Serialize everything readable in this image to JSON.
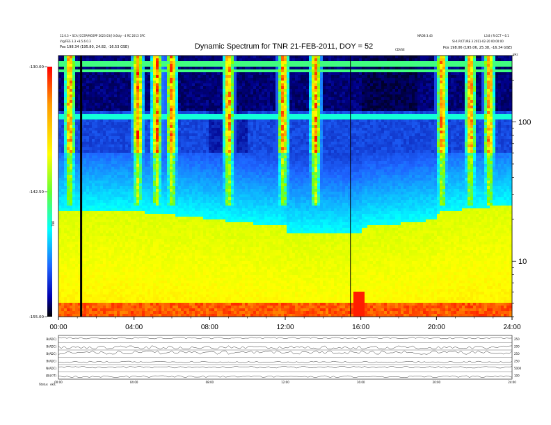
{
  "chart_data": {
    "type": "heatmap",
    "title": "Dynamic Spectrum for TNR 21-FEB-2011, DOY = 52",
    "header": {
      "left_line1": "12.0.3 • SCA [CCSP/MGSPP 2023 03/] 0.6kty - 4 RC 2013 5PC",
      "left_line2": "Vrg/FES 3.3 •8.5.6 0.3",
      "left_line3": "Pos 198.34 (195.80, 24.82, -16.53 GSE)",
      "center_small": "CDVSE",
      "right_line1": "NROB 3.43",
      "right_line2": "L3.8 / R.CCT • 6.1",
      "right_line3": "SI-4.P/CTURE 3 2011-02-20 00:00:00",
      "right_line4": "Pos 198.06 (195.06, 25.38, -16.34 GSE)",
      "right_corner": "kHz"
    },
    "colorbar": {
      "ticks": [
        "-130.00",
        "-142.50",
        "-155.00"
      ],
      "label": "TNR"
    },
    "y_axis": {
      "scale": "log",
      "range_khz": [
        4,
        300
      ],
      "tick_labels": [
        "100",
        "10"
      ],
      "tick_values": [
        100,
        10
      ]
    },
    "x_axis": {
      "range_hours": [
        0,
        24
      ],
      "tick_labels": [
        "00:00",
        "04:00",
        "08:00",
        "12:00",
        "16:00",
        "20:00",
        "24:00"
      ],
      "tick_values": [
        0,
        4,
        8,
        12,
        16,
        20,
        24
      ]
    },
    "features": {
      "data_gaps_hours": [
        1.2,
        15.45
      ],
      "bursts_hours": [
        0.6,
        4.2,
        5.2,
        6.0,
        9.0,
        11.9,
        13.6,
        20.3,
        21.8,
        22.8
      ],
      "background_band_boundary_khz": 60,
      "yellow_band_edge_khz": 20
    },
    "panels": {
      "rows": [
        {
          "label": "B(ADC)",
          "scale_right": "250"
        },
        {
          "label": "B(ADC)",
          "scale_right": "200"
        },
        {
          "label": "B(ADC)",
          "scale_right": "250"
        },
        {
          "label": "B(ADC)",
          "scale_right": "250"
        },
        {
          "label": "N(ADC)",
          "scale_right": "5000"
        },
        {
          "label": "(B)(Y/T)",
          "scale_right": "100"
        }
      ],
      "x_tick_labels": [
        "00:00",
        "04:00",
        "08:00",
        "12:00",
        "16:00",
        "20:00",
        "24:00"
      ],
      "footer_label": "Status",
      "footer_value": "ok/L"
    },
    "colors": {
      "scale": [
        "#000000",
        "#00008b",
        "#1e64ff",
        "#00ffff",
        "#7fff00",
        "#ffff00",
        "#ff8c00",
        "#ff0000"
      ]
    }
  }
}
